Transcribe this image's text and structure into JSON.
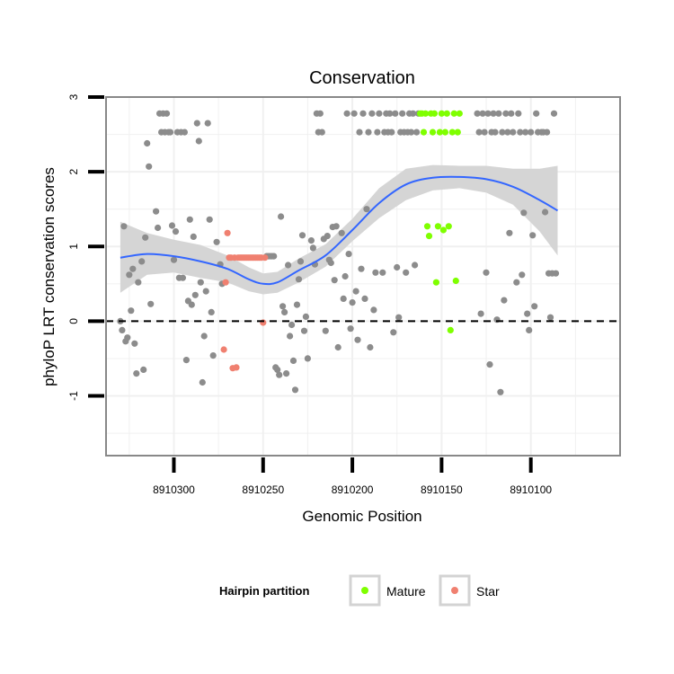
{
  "chart_data": {
    "type": "scatter",
    "title": "Conservation",
    "xlabel": "Genomic Position",
    "ylabel": "phyloP LRT conservation scores",
    "x_reversed": true,
    "xlim": [
      8910050,
      8910338
    ],
    "ylim": [
      -1.8,
      3.0
    ],
    "x_ticks": [
      8910300,
      8910250,
      8910200,
      8910150,
      8910100
    ],
    "y_ticks": [
      3,
      2,
      1,
      0,
      -1
    ],
    "reference_line_y": 0,
    "grid": true,
    "legend": {
      "title": "Hairpin partition",
      "placement": "bottom",
      "entries": [
        {
          "name": "Mature",
          "color": "#7fff00"
        },
        {
          "name": "Star",
          "color": "#f08070"
        }
      ]
    },
    "colors": {
      "other": "#8c8c8c",
      "mature": "#7fff00",
      "star": "#f08070",
      "smooth": "#3366ff",
      "band": "#d3d3d3",
      "panel_border": "#888888",
      "grid": "#f0f0f0"
    },
    "series": [
      {
        "group": "other",
        "points": [
          [
            8910330,
            0.0
          ],
          [
            8910329,
            -0.12
          ],
          [
            8910328,
            1.27
          ],
          [
            8910327,
            -0.27
          ],
          [
            8910326,
            -0.22
          ],
          [
            8910325,
            0.62
          ],
          [
            8910324,
            0.14
          ],
          [
            8910323,
            0.7
          ],
          [
            8910322,
            -0.3
          ],
          [
            8910321,
            -0.7
          ],
          [
            8910320,
            0.52
          ],
          [
            8910318,
            0.8
          ],
          [
            8910317,
            -0.65
          ],
          [
            8910316,
            1.12
          ],
          [
            8910315,
            2.38
          ],
          [
            8910314,
            2.07
          ],
          [
            8910313,
            0.23
          ],
          [
            8910310,
            1.47
          ],
          [
            8910309,
            1.25
          ],
          [
            8910308,
            2.78
          ],
          [
            8910307,
            2.53
          ],
          [
            8910306,
            2.78
          ],
          [
            8910305,
            2.53
          ],
          [
            8910304,
            2.78
          ],
          [
            8910303,
            2.53
          ],
          [
            8910302,
            2.53
          ],
          [
            8910301,
            1.28
          ],
          [
            8910300,
            0.82
          ],
          [
            8910299,
            1.2
          ],
          [
            8910298,
            2.53
          ],
          [
            8910297,
            0.58
          ],
          [
            8910296,
            2.53
          ],
          [
            8910295,
            0.58
          ],
          [
            8910294,
            2.53
          ],
          [
            8910293,
            -0.52
          ],
          [
            8910292,
            0.27
          ],
          [
            8910291,
            1.36
          ],
          [
            8910290,
            0.22
          ],
          [
            8910289,
            1.13
          ],
          [
            8910288,
            0.35
          ],
          [
            8910287,
            2.65
          ],
          [
            8910286,
            2.41
          ],
          [
            8910285,
            0.52
          ],
          [
            8910284,
            -0.82
          ],
          [
            8910283,
            -0.2
          ],
          [
            8910282,
            0.4
          ],
          [
            8910281,
            2.65
          ],
          [
            8910280,
            1.36
          ],
          [
            8910279,
            0.12
          ],
          [
            8910278,
            -0.46
          ],
          [
            8910276,
            1.06
          ],
          [
            8910274,
            0.76
          ],
          [
            8910273,
            0.5
          ],
          [
            8910248,
            0.87
          ],
          [
            8910247,
            0.87
          ],
          [
            8910246,
            0.87
          ],
          [
            8910245,
            0.87
          ],
          [
            8910244,
            0.87
          ],
          [
            8910243,
            -0.62
          ],
          [
            8910242,
            -0.65
          ],
          [
            8910241,
            -0.72
          ],
          [
            8910240,
            1.4
          ],
          [
            8910239,
            0.2
          ],
          [
            8910238,
            0.12
          ],
          [
            8910237,
            -0.7
          ],
          [
            8910236,
            0.75
          ],
          [
            8910235,
            -0.2
          ],
          [
            8910234,
            -0.05
          ],
          [
            8910233,
            -0.53
          ],
          [
            8910232,
            -0.92
          ],
          [
            8910231,
            0.22
          ],
          [
            8910230,
            0.56
          ],
          [
            8910229,
            0.8
          ],
          [
            8910228,
            1.15
          ],
          [
            8910227,
            -0.13
          ],
          [
            8910226,
            0.06
          ],
          [
            8910225,
            -0.5
          ],
          [
            8910223,
            1.08
          ],
          [
            8910222,
            0.98
          ],
          [
            8910221,
            0.76
          ],
          [
            8910220,
            2.78
          ],
          [
            8910219,
            2.53
          ],
          [
            8910218,
            2.78
          ],
          [
            8910217,
            2.53
          ],
          [
            8910216,
            1.1
          ],
          [
            8910215,
            -0.13
          ],
          [
            8910214,
            1.14
          ],
          [
            8910213,
            0.82
          ],
          [
            8910212,
            0.78
          ],
          [
            8910211,
            1.26
          ],
          [
            8910210,
            0.55
          ],
          [
            8910209,
            1.27
          ],
          [
            8910208,
            -0.35
          ],
          [
            8910206,
            1.18
          ],
          [
            8910205,
            0.3
          ],
          [
            8910204,
            0.6
          ],
          [
            8910203,
            2.78
          ],
          [
            8910202,
            0.9
          ],
          [
            8910201,
            -0.1
          ],
          [
            8910200,
            0.25
          ],
          [
            8910199,
            2.78
          ],
          [
            8910198,
            0.4
          ],
          [
            8910197,
            -0.25
          ],
          [
            8910196,
            2.53
          ],
          [
            8910195,
            0.7
          ],
          [
            8910194,
            2.78
          ],
          [
            8910193,
            0.3
          ],
          [
            8910192,
            1.5
          ],
          [
            8910191,
            2.53
          ],
          [
            8910190,
            -0.35
          ],
          [
            8910189,
            2.78
          ],
          [
            8910188,
            0.15
          ],
          [
            8910187,
            0.65
          ],
          [
            8910186,
            2.53
          ],
          [
            8910185,
            2.78
          ],
          [
            8910183,
            0.65
          ],
          [
            8910182,
            2.53
          ],
          [
            8910181,
            2.78
          ],
          [
            8910180,
            2.53
          ],
          [
            8910179,
            2.78
          ],
          [
            8910178,
            2.53
          ],
          [
            8910177,
            -0.15
          ],
          [
            8910176,
            2.78
          ],
          [
            8910175,
            0.72
          ],
          [
            8910174,
            0.05
          ],
          [
            8910173,
            2.53
          ],
          [
            8910172,
            2.78
          ],
          [
            8910171,
            2.53
          ],
          [
            8910170,
            0.65
          ],
          [
            8910169,
            2.53
          ],
          [
            8910168,
            2.78
          ],
          [
            8910167,
            2.53
          ],
          [
            8910166,
            2.78
          ],
          [
            8910165,
            0.75
          ],
          [
            8910164,
            2.53
          ],
          [
            8910163,
            2.78
          ],
          [
            8910130,
            2.78
          ],
          [
            8910129,
            2.53
          ],
          [
            8910128,
            0.1
          ],
          [
            8910127,
            2.78
          ],
          [
            8910126,
            2.53
          ],
          [
            8910125,
            0.65
          ],
          [
            8910124,
            2.78
          ],
          [
            8910123,
            -0.58
          ],
          [
            8910122,
            2.53
          ],
          [
            8910121,
            2.78
          ],
          [
            8910120,
            2.53
          ],
          [
            8910119,
            0.02
          ],
          [
            8910118,
            2.78
          ],
          [
            8910117,
            -0.95
          ],
          [
            8910116,
            2.53
          ],
          [
            8910115,
            0.28
          ],
          [
            8910114,
            2.78
          ],
          [
            8910113,
            2.53
          ],
          [
            8910112,
            1.18
          ],
          [
            8910111,
            2.78
          ],
          [
            8910110,
            2.53
          ],
          [
            8910108,
            0.52
          ],
          [
            8910107,
            2.78
          ],
          [
            8910106,
            2.53
          ],
          [
            8910105,
            0.62
          ],
          [
            8910104,
            1.45
          ],
          [
            8910103,
            2.53
          ],
          [
            8910102,
            0.1
          ],
          [
            8910101,
            -0.12
          ],
          [
            8910100,
            2.53
          ],
          [
            8910099,
            1.15
          ],
          [
            8910098,
            0.2
          ],
          [
            8910097,
            2.78
          ],
          [
            8910096,
            2.53
          ],
          [
            8910094,
            2.53
          ],
          [
            8910093,
            2.53
          ],
          [
            8910092,
            1.46
          ],
          [
            8910091,
            2.53
          ],
          [
            8910090,
            0.64
          ],
          [
            8910089,
            0.05
          ],
          [
            8910088,
            0.64
          ],
          [
            8910087,
            2.78
          ],
          [
            8910086,
            0.64
          ]
        ]
      },
      {
        "group": "mature",
        "points": [
          [
            8910162,
            2.78
          ],
          [
            8910161,
            2.78
          ],
          [
            8910160,
            2.53
          ],
          [
            8910159,
            2.78
          ],
          [
            8910158,
            1.27
          ],
          [
            8910157,
            1.14
          ],
          [
            8910156,
            2.78
          ],
          [
            8910155,
            2.53
          ],
          [
            8910154,
            2.78
          ],
          [
            8910153,
            0.52
          ],
          [
            8910152,
            1.27
          ],
          [
            8910151,
            2.53
          ],
          [
            8910150,
            2.78
          ],
          [
            8910149,
            1.22
          ],
          [
            8910148,
            2.53
          ],
          [
            8910147,
            2.78
          ],
          [
            8910146,
            1.27
          ],
          [
            8910145,
            -0.12
          ],
          [
            8910144,
            2.53
          ],
          [
            8910143,
            2.78
          ],
          [
            8910142,
            0.54
          ],
          [
            8910141,
            2.53
          ],
          [
            8910140,
            2.78
          ]
        ]
      },
      {
        "group": "star",
        "points": [
          [
            8910272,
            -0.38
          ],
          [
            8910271,
            0.52
          ],
          [
            8910270,
            1.18
          ],
          [
            8910269,
            0.85
          ],
          [
            8910268,
            0.85
          ],
          [
            8910267,
            -0.63
          ],
          [
            8910266,
            0.85
          ],
          [
            8910265,
            -0.62
          ],
          [
            8910264,
            0.85
          ],
          [
            8910263,
            0.85
          ],
          [
            8910262,
            0.85
          ],
          [
            8910261,
            0.85
          ],
          [
            8910260,
            0.85
          ],
          [
            8910259,
            0.85
          ],
          [
            8910258,
            0.85
          ],
          [
            8910257,
            0.85
          ],
          [
            8910256,
            0.85
          ],
          [
            8910255,
            0.85
          ],
          [
            8910254,
            0.85
          ],
          [
            8910253,
            0.85
          ],
          [
            8910252,
            0.85
          ],
          [
            8910251,
            0.85
          ],
          [
            8910250,
            -0.02
          ],
          [
            8910249,
            0.85
          ]
        ]
      }
    ],
    "smooth": {
      "x": [
        8910330,
        8910315,
        8910300,
        8910285,
        8910270,
        8910258,
        8910250,
        8910242,
        8910230,
        8910215,
        8910200,
        8910185,
        8910170,
        8910155,
        8910140,
        8910125,
        8910110,
        8910095,
        8910085
      ],
      "y": [
        0.85,
        0.9,
        0.87,
        0.8,
        0.7,
        0.56,
        0.5,
        0.52,
        0.68,
        0.88,
        1.22,
        1.58,
        1.83,
        1.92,
        1.93,
        1.9,
        1.8,
        1.62,
        1.48
      ],
      "lower": [
        0.38,
        0.62,
        0.65,
        0.58,
        0.52,
        0.4,
        0.36,
        0.38,
        0.52,
        0.73,
        1.07,
        1.38,
        1.62,
        1.75,
        1.78,
        1.72,
        1.56,
        1.2,
        0.88
      ],
      "upper": [
        1.33,
        1.18,
        1.09,
        1.02,
        0.88,
        0.72,
        0.64,
        0.66,
        0.84,
        1.03,
        1.37,
        1.78,
        2.04,
        2.09,
        2.08,
        2.08,
        2.04,
        2.04,
        2.08
      ]
    }
  }
}
